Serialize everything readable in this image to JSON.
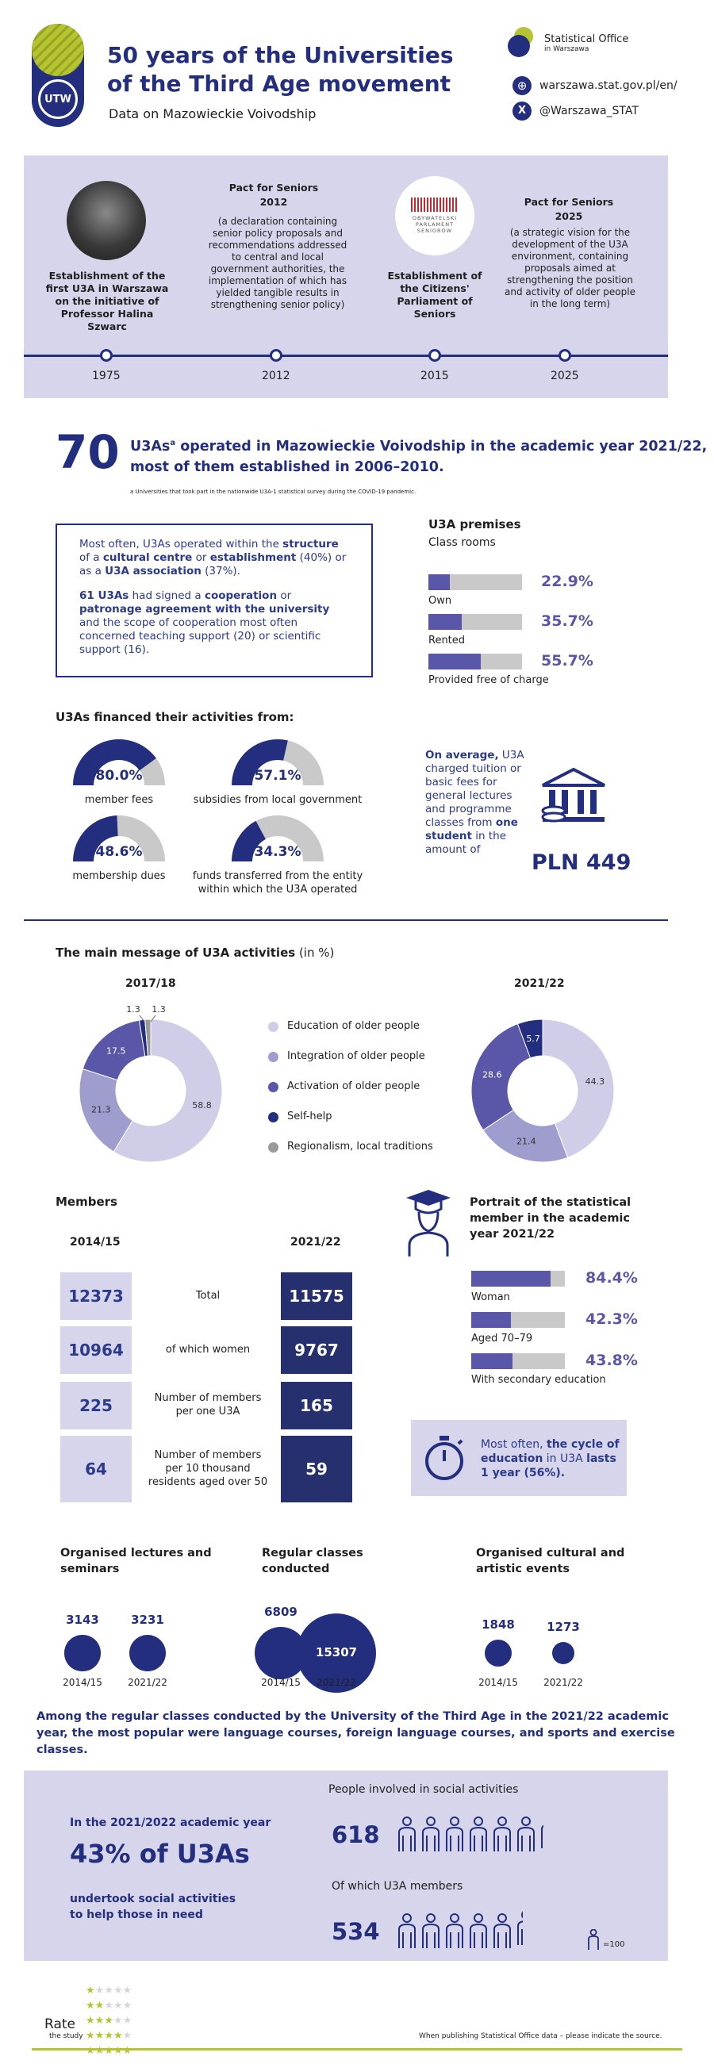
{
  "header": {
    "logo_text": "UTW",
    "title_line1": "50 years of the Universities",
    "title_line2": "of the Third Age movement",
    "subtitle": "Data on Mazowieckie Voivodship",
    "office_name": "Statistical Office",
    "office_sub": "in Warszawa",
    "website": "warszawa.stat.gov.pl/en/",
    "twitter": "@Warszawa_STAT"
  },
  "timeline": {
    "events": [
      {
        "year": "1975",
        "text": "Establishment of the first U3A in Warszawa on the initiative of Professor Halina Szwarc"
      },
      {
        "year": "2012",
        "title": "Pact for Seniors 2012",
        "text": "(a declaration containing senior policy proposals and recommendations addressed to central and local government authorities, the implementation of which has yielded tangible results in strengthening senior policy)"
      },
      {
        "year": "2015",
        "text": "Establishment of the Citizens' Parliament of Seniors",
        "logo_text": "OBYWATELSKI PARLAMENT SENIORÓW"
      },
      {
        "year": "2025",
        "title": "Pact for Seniors 2025",
        "text": "(a strategic vision for the development of the U3A environment, containing proposals aimed at strengthening the position and activity of older people in the long term)"
      }
    ]
  },
  "u3a_count": {
    "number": "70",
    "text_pre": "U3As",
    "sup": "a",
    "text_line1": " operated in Mazowieckie Voivodship in the academic year 2021/22,",
    "text_line2": "most of them established in 2006–2010.",
    "footnote": "a Universities that took part in the nationwide U3A-1 statistical survey during the COVID-19 pandemic."
  },
  "structure_box": {
    "p1_a": "Most often, U3As operated within the ",
    "p1_b": "structure",
    "p1_c": " of a ",
    "p1_d": "cultural centre",
    "p1_e": " or ",
    "p1_f": "establishment",
    "p1_g": " (40%) or as a ",
    "p1_h": "U3A association",
    "p1_i": " (37%).",
    "p2_a": "61 U3As",
    "p2_b": " had signed a ",
    "p2_c": "cooperation",
    "p2_d": " or ",
    "p2_e": "patronage agreement with the university",
    "p2_f": " and the scope of cooperation most often concerned teaching support (20) or scientific support (16)."
  },
  "premises": {
    "title": "U3A premises",
    "subtitle": "Class rooms",
    "items": [
      {
        "label": "Own",
        "value": "22.9%",
        "fraction": 0.229
      },
      {
        "label": "Rented",
        "value": "35.7%",
        "fraction": 0.357
      },
      {
        "label": "Provided free of charge",
        "value": "55.7%",
        "fraction": 0.557
      }
    ]
  },
  "financing": {
    "title": "U3As financed their activities from:",
    "items": [
      {
        "label": "member fees",
        "value": "80.0%",
        "fraction": 0.8
      },
      {
        "label": "subsidies from local government",
        "value": "57.1%",
        "fraction": 0.571
      },
      {
        "label": "membership dues",
        "value": "48.6%",
        "fraction": 0.486
      },
      {
        "label": "funds transferred from the entity within which the U3A operated",
        "value": "34.3%",
        "fraction": 0.343
      }
    ],
    "fee_text_a": "On average,",
    "fee_text_b": " U3A charged tuition or basic fees for general lectures and programme classes from ",
    "fee_text_c": "one student",
    "fee_text_d": " in the amount of",
    "fee_amount": "PLN 449"
  },
  "main_message": {
    "title": "The main message of U3A activities",
    "title_unit": " (in %)",
    "year1": "2017/18",
    "year2": "2021/22",
    "legend": [
      {
        "label": "Education of older people",
        "color": "#cfcde8"
      },
      {
        "label": "Integration of older people",
        "color": "#9f9dce"
      },
      {
        "label": "Activation of older people",
        "color": "#5a57a8"
      },
      {
        "label": "Self-help",
        "color": "#232f7e"
      },
      {
        "label": "Regionalism, local traditions",
        "color": "#9a9a9a"
      }
    ]
  },
  "chart_data": [
    {
      "type": "pie",
      "title": "2017/18",
      "categories": [
        "Education of older people",
        "Integration of older people",
        "Activation of older people",
        "Self-help",
        "Regionalism, local traditions"
      ],
      "values": [
        58.8,
        21.3,
        17.5,
        1.3,
        1.3
      ]
    },
    {
      "type": "pie",
      "title": "2021/22",
      "categories": [
        "Education of older people",
        "Integration of older people",
        "Activation of older people",
        "Self-help"
      ],
      "values": [
        44.3,
        21.4,
        28.6,
        5.7
      ]
    }
  ],
  "members": {
    "title": "Members",
    "col1": "2014/15",
    "col2": "2021/22",
    "rows": [
      {
        "label": "Total",
        "v1": "12373",
        "v2": "11575"
      },
      {
        "label": "of which women",
        "v1": "10964",
        "v2": "9767"
      },
      {
        "label": "Number of members per one U3A",
        "v1": "225",
        "v2": "165"
      },
      {
        "label": "Number of members per 10 thousand residents aged over 50",
        "v1": "64",
        "v2": "59"
      }
    ]
  },
  "portrait": {
    "title": "Portrait of the statistical member in the academic year 2021/22",
    "items": [
      {
        "label": "Woman",
        "value": "84.4%",
        "fraction": 0.844
      },
      {
        "label": "Aged 70–79",
        "value": "42.3%",
        "fraction": 0.423
      },
      {
        "label": "With secondary education",
        "value": "43.8%",
        "fraction": 0.438
      }
    ],
    "cycle_a": "Most often, ",
    "cycle_b": "the cycle of education",
    "cycle_c": " in U3A ",
    "cycle_d": "lasts 1 year (56%)."
  },
  "activities": [
    {
      "title": "Organised lectures and seminars",
      "y1": "2014/15",
      "v1": "3143",
      "y2": "2021/22",
      "v2": "3231"
    },
    {
      "title": "Regular classes conducted",
      "y1": "2014/15",
      "v1": "6809",
      "y2": "2021/22",
      "v2": "15307"
    },
    {
      "title": "Organised cultural and artistic events",
      "y1": "2014/15",
      "v1": "1848",
      "y2": "2021/22",
      "v2": "1273"
    }
  ],
  "popular": "Among the regular classes conducted by the University of the Third Age in the 2021/22 academic year, the most popular were language courses, foreign language courses, and sports and exercise classes.",
  "social": {
    "lead": "In the 2021/2022 academic year",
    "big": "43% of U3As",
    "tail": "undertook social activities to help those in need",
    "people_title": "People involved in social activities",
    "people_value": "618",
    "members_title": "Of which U3A members",
    "members_value": "534",
    "legend": "=100"
  },
  "footer": {
    "rate": "Rate",
    "rate_sub": "the study",
    "note": "When publishing Statistical Office data – please indicate the source."
  }
}
